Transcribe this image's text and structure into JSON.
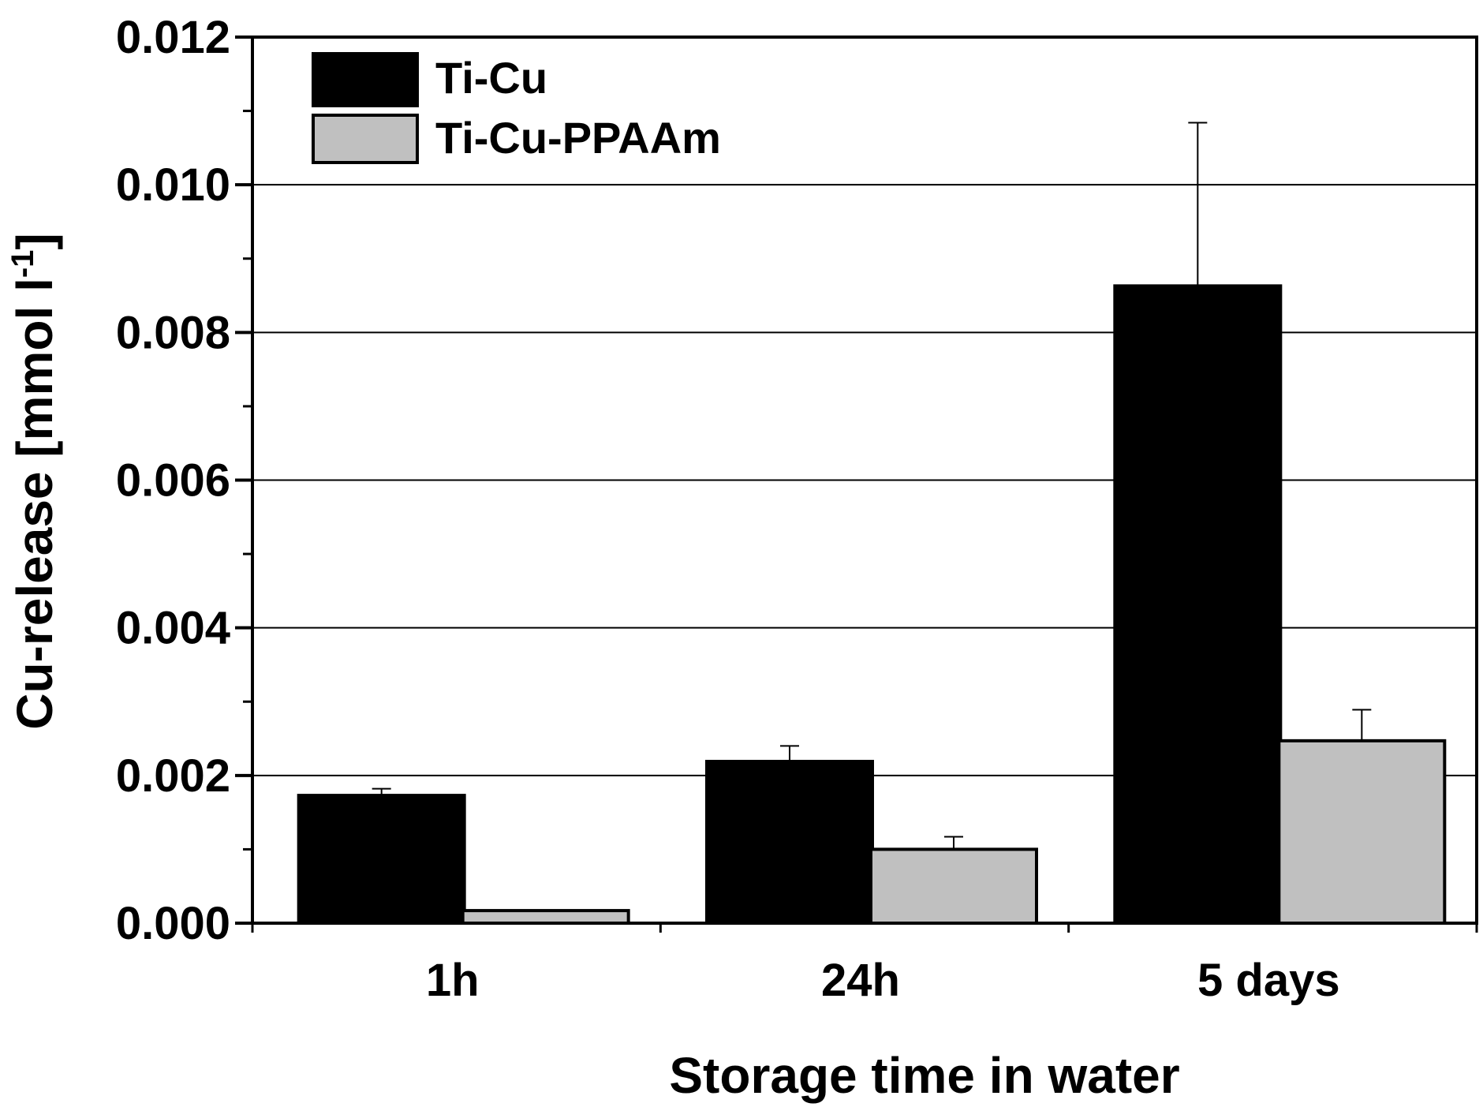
{
  "chart_data": {
    "type": "bar",
    "categories": [
      "1h",
      "24h",
      "5 days"
    ],
    "series": [
      {
        "name": "Ti-Cu",
        "values": [
          0.00173,
          0.00219,
          0.00863
        ],
        "errors": [
          9e-05,
          0.00021,
          0.00221
        ],
        "color": "#000000"
      },
      {
        "name": "Ti-Cu-PPAAm",
        "values": [
          0.00017,
          0.001,
          0.00247
        ],
        "errors": [
          0.0,
          0.00017,
          0.00042
        ],
        "color": "#c0c0c0"
      }
    ],
    "xlabel": "Storage time in water",
    "ylabel_main": "Cu-release [mmol l",
    "ylabel_sup": "-1",
    "ylim": [
      0,
      0.012
    ],
    "yticks": [
      "0.000",
      "0.002",
      "0.004",
      "0.006",
      "0.008",
      "0.010",
      "0.012"
    ],
    "grid": true,
    "legend_position": "top-left"
  }
}
